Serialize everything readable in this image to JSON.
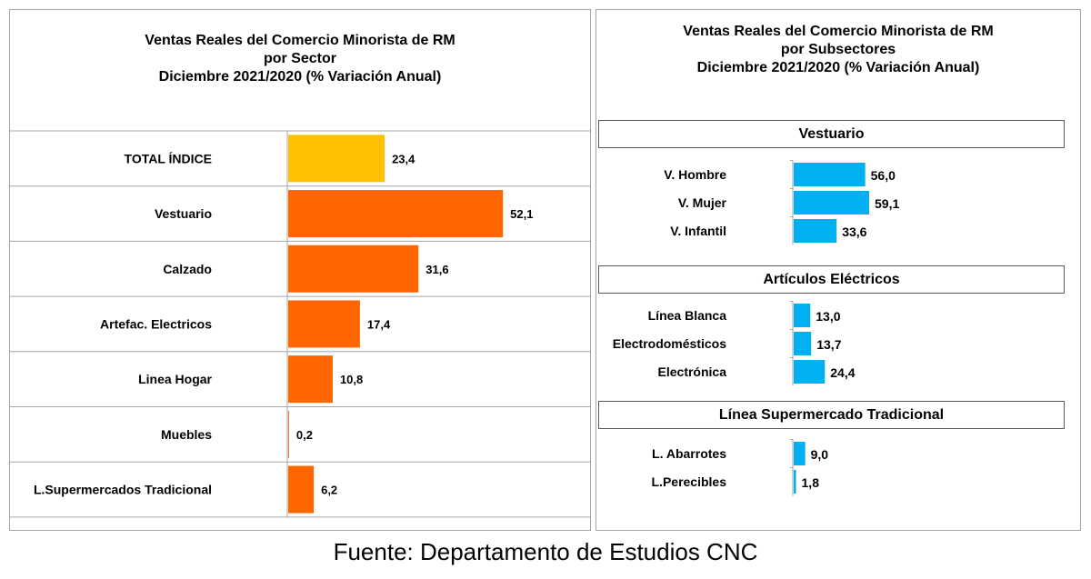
{
  "left": {
    "title_lines": [
      "Ventas Reales del Comercio Minorista de RM",
      "por Sector",
      "Diciembre 2021/2020 (% Variación Anual)"
    ]
  },
  "right": {
    "title_lines": [
      "Ventas Reales del Comercio Minorista de RM",
      "por Subsectores",
      "Diciembre 2021/2020 (% Variación Anual)"
    ]
  },
  "footer": "Fuente: Departamento de Estudios CNC",
  "colors": {
    "total": "#FFC000",
    "sector": "#FF6600",
    "subsector": "#00B0F0",
    "gridline": "#a6a6a6"
  },
  "chart_data": [
    {
      "type": "bar",
      "orientation": "horizontal",
      "title": "Ventas Reales del Comercio Minorista de RM por Sector Diciembre 2021/2020 (% Variación Anual)",
      "categories": [
        "TOTAL ÍNDICE",
        "Vestuario",
        "Calzado",
        "Artefac. Electricos",
        "Linea Hogar",
        "Muebles",
        "L.Supermercados Tradicional"
      ],
      "values": [
        23.4,
        52.1,
        31.6,
        17.4,
        10.8,
        0.2,
        6.2
      ],
      "value_labels": [
        "23,4",
        "52,1",
        "31,6",
        "17,4",
        "10,8",
        "0,2",
        "6,2"
      ],
      "bar_colors": [
        "#FFC000",
        "#FF6600",
        "#FF6600",
        "#FF6600",
        "#FF6600",
        "#FF6600",
        "#FF6600"
      ],
      "xlim": [
        0,
        60
      ],
      "grid": true
    },
    {
      "type": "bar",
      "orientation": "horizontal",
      "title": "Ventas Reales del Comercio Minorista de RM por Subsectores Diciembre 2021/2020 (% Variación Anual)",
      "xlim": [
        0,
        60
      ],
      "groups": [
        {
          "name": "Vestuario",
          "categories": [
            "V. Hombre",
            "V. Mujer",
            "V. Infantil"
          ],
          "values": [
            56.0,
            59.1,
            33.6
          ],
          "value_labels": [
            "56,0",
            "59,1",
            "33,6"
          ]
        },
        {
          "name": "Artículos Eléctricos",
          "categories": [
            "Línea Blanca",
            "Electrodomésticos",
            "Electrónica"
          ],
          "values": [
            13.0,
            13.7,
            24.4
          ],
          "value_labels": [
            "13,0",
            "13,7",
            "24,4"
          ]
        },
        {
          "name": "Línea Supermercado Tradicional",
          "categories": [
            "L. Abarrotes",
            "L.Perecibles"
          ],
          "values": [
            9.0,
            1.8
          ],
          "value_labels": [
            "9,0",
            "1,8"
          ]
        }
      ]
    }
  ]
}
